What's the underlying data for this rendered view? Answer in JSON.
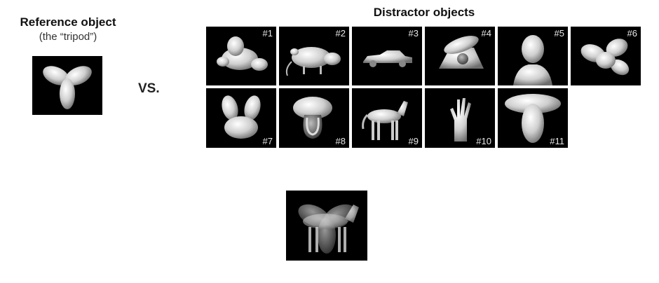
{
  "reference": {
    "title": "Reference object",
    "subtitle": "(the “tripod”)"
  },
  "vs_label": "VS.",
  "distractors": {
    "title": "Distractor objects",
    "items": [
      {
        "label": "#1",
        "icon": "blob-object-icon"
      },
      {
        "label": "#2",
        "icon": "rat-icon"
      },
      {
        "label": "#3",
        "icon": "car-icon"
      },
      {
        "label": "#4",
        "icon": "telephone-icon"
      },
      {
        "label": "#5",
        "icon": "head-bust-icon"
      },
      {
        "label": "#6",
        "icon": "four-lobe-blob-icon"
      },
      {
        "label": "#7",
        "icon": "bunny-blob-icon"
      },
      {
        "label": "#8",
        "icon": "mushroom-icon"
      },
      {
        "label": "#9",
        "icon": "horse-icon"
      },
      {
        "label": "#10",
        "icon": "hand-icon"
      },
      {
        "label": "#11",
        "icon": "t-shape-blob-icon"
      }
    ]
  },
  "composite": {
    "icon": "tripod-horse-overlay-icon"
  }
}
